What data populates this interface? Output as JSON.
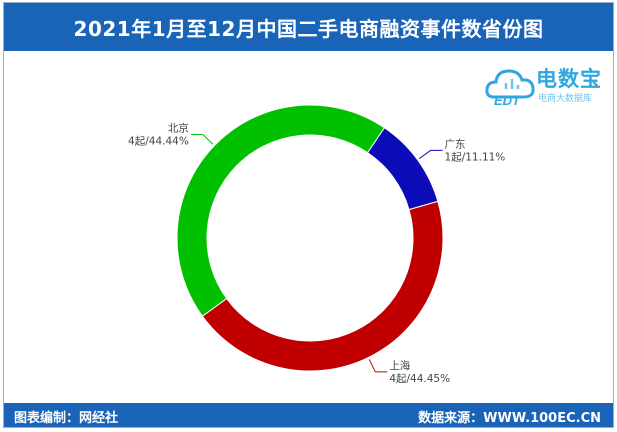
{
  "header": {
    "title": "2021年1月至12月中国二手电商融资事件数省份图"
  },
  "logo": {
    "brand": "电数宝",
    "sub": "电商大数据库",
    "mark": "EDT",
    "icon": "cloud-icon"
  },
  "footer": {
    "left": "图表编制：网经社",
    "right": "数据来源：WWW.100EC.CN"
  },
  "chart_data": {
    "type": "pie",
    "donut": true,
    "title": "2021年1月至12月中国二手电商融资事件数省份图",
    "slices": [
      {
        "name": "广东",
        "value": 1,
        "label": "1起/11.11%",
        "color": "#0b0bb8"
      },
      {
        "name": "上海",
        "value": 4,
        "label": "4起/44.45%",
        "color": "#c00000"
      },
      {
        "name": "北京",
        "value": 4,
        "label": "4起/44.44%",
        "color": "#00c000"
      }
    ]
  }
}
